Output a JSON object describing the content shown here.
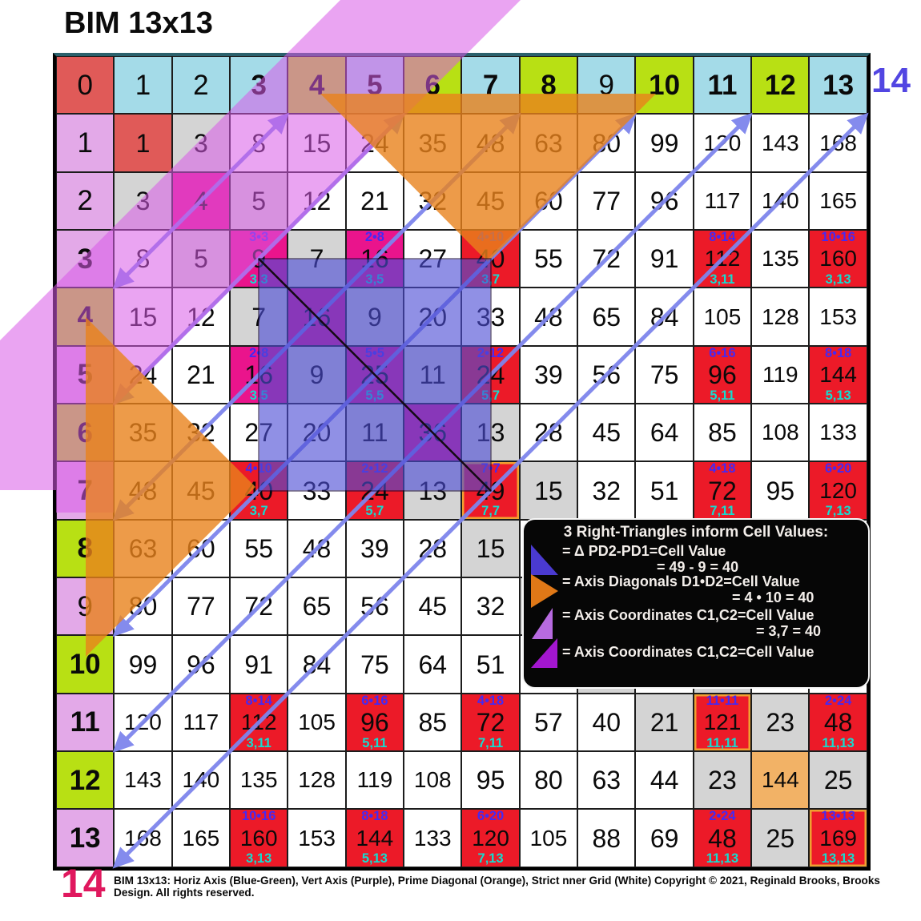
{
  "title": "BIM 13x13",
  "caption": "BIM 13x13:  Horiz Axis (Blue-Green), Vert Axis (Purple), Prime Diagonal (Orange), Strict nner Grid (White)  Copyright © 2021, Reginald Brooks, Brooks Design. All rights reserved.",
  "corner_labels": {
    "top_right": "14",
    "bottom_left": "14"
  },
  "matrix": {
    "col_headers": [
      0,
      1,
      2,
      3,
      4,
      5,
      6,
      7,
      8,
      9,
      10,
      11,
      12,
      13
    ],
    "row_headers": [
      1,
      2,
      3,
      4,
      5,
      6,
      7,
      8,
      9,
      10,
      11,
      12,
      13
    ],
    "rows": [
      [
        1,
        3,
        8,
        15,
        24,
        35,
        48,
        63,
        80,
        99,
        120,
        143,
        168
      ],
      [
        3,
        4,
        5,
        12,
        21,
        32,
        45,
        60,
        77,
        96,
        117,
        140,
        165
      ],
      [
        8,
        5,
        9,
        7,
        16,
        27,
        40,
        55,
        72,
        91,
        112,
        135,
        160
      ],
      [
        15,
        12,
        7,
        16,
        9,
        20,
        33,
        48,
        65,
        84,
        105,
        128,
        153
      ],
      [
        24,
        21,
        16,
        9,
        25,
        11,
        24,
        39,
        56,
        75,
        96,
        119,
        144
      ],
      [
        35,
        32,
        27,
        20,
        11,
        36,
        13,
        28,
        45,
        64,
        85,
        108,
        133
      ],
      [
        48,
        45,
        40,
        33,
        24,
        13,
        49,
        15,
        32,
        51,
        72,
        95,
        120
      ],
      [
        63,
        60,
        55,
        48,
        39,
        28,
        15,
        null,
        null,
        null,
        null,
        null,
        null
      ],
      [
        80,
        77,
        72,
        65,
        56,
        45,
        32,
        null,
        null,
        null,
        null,
        null,
        null
      ],
      [
        99,
        96,
        91,
        84,
        75,
        64,
        51,
        null,
        null,
        null,
        null,
        null,
        null
      ],
      [
        120,
        117,
        112,
        105,
        96,
        85,
        72,
        57,
        40,
        21,
        121,
        23,
        48
      ],
      [
        143,
        140,
        135,
        128,
        119,
        108,
        95,
        80,
        63,
        44,
        23,
        144,
        25
      ],
      [
        168,
        165,
        160,
        153,
        144,
        133,
        120,
        105,
        88,
        69,
        48,
        25,
        169
      ]
    ]
  },
  "style_sets": {
    "prime_axis_numbers": [
      3,
      5,
      7,
      11,
      13
    ],
    "chartreuse_axis_numbers": [
      4,
      6,
      8,
      10,
      12
    ],
    "orange_border_diagonals": [
      7,
      11,
      13
    ],
    "diagonal_bg": {
      "1": "bg-salmon",
      "2": "bg-pink",
      "4": "bg-pink",
      "6": "bg-pink",
      "12": "bg-tan"
    }
  },
  "annotations": [
    {
      "r": 3,
      "c": 3,
      "top": "3•3",
      "bottom": "3,3",
      "bg": "pink"
    },
    {
      "r": 3,
      "c": 5,
      "top": "2•8",
      "bottom": "3,5",
      "bg": "pink"
    },
    {
      "r": 5,
      "c": 3,
      "top": "2•8",
      "bottom": "3,5",
      "bg": "pink"
    },
    {
      "r": 5,
      "c": 5,
      "top": "5•5",
      "bottom": "5,5",
      "bg": "pink"
    },
    {
      "r": 3,
      "c": 7,
      "top": "4•10",
      "bottom": "3,7",
      "bg": "red"
    },
    {
      "r": 7,
      "c": 3,
      "top": "4•10",
      "bottom": "3,7",
      "bg": "red"
    },
    {
      "r": 5,
      "c": 7,
      "top": "2•12",
      "bottom": "5,7",
      "bg": "red"
    },
    {
      "r": 7,
      "c": 5,
      "top": "2•12",
      "bottom": "5,7",
      "bg": "red"
    },
    {
      "r": 7,
      "c": 7,
      "top": "7•7",
      "bottom": "7,7",
      "bg": "red"
    },
    {
      "r": 3,
      "c": 11,
      "top": "8•14",
      "bottom": "3,11",
      "bg": "red"
    },
    {
      "r": 11,
      "c": 3,
      "top": "8•14",
      "bottom": "3,11",
      "bg": "red"
    },
    {
      "r": 5,
      "c": 11,
      "top": "6•16",
      "bottom": "5,11",
      "bg": "red"
    },
    {
      "r": 11,
      "c": 5,
      "top": "6•16",
      "bottom": "5,11",
      "bg": "red"
    },
    {
      "r": 7,
      "c": 11,
      "top": "4•18",
      "bottom": "7,11",
      "bg": "red"
    },
    {
      "r": 11,
      "c": 7,
      "top": "4•18",
      "bottom": "7,11",
      "bg": "red"
    },
    {
      "r": 3,
      "c": 13,
      "top": "10•16",
      "bottom": "3,13",
      "bg": "red"
    },
    {
      "r": 13,
      "c": 3,
      "top": "10•16",
      "bottom": "3,13",
      "bg": "red"
    },
    {
      "r": 5,
      "c": 13,
      "top": "8•18",
      "bottom": "5,13",
      "bg": "red"
    },
    {
      "r": 13,
      "c": 5,
      "top": "8•18",
      "bottom": "5,13",
      "bg": "red"
    },
    {
      "r": 7,
      "c": 13,
      "top": "6•20",
      "bottom": "7,13",
      "bg": "red"
    },
    {
      "r": 13,
      "c": 7,
      "top": "6•20",
      "bottom": "7,13",
      "bg": "red"
    },
    {
      "r": 11,
      "c": 11,
      "top": "11•11",
      "bottom": "11,11",
      "bg": "red"
    },
    {
      "r": 11,
      "c": 13,
      "top": "2•24",
      "bottom": "11,13",
      "bg": "red"
    },
    {
      "r": 13,
      "c": 11,
      "top": "2•24",
      "bottom": "11,13",
      "bg": "red"
    },
    {
      "r": 13,
      "c": 13,
      "top": "13•13",
      "bottom": "13,13",
      "bg": "red"
    }
  ],
  "arrows": {
    "anti_diagonal_sums": [
      4,
      6,
      8,
      10,
      12,
      14
    ]
  },
  "legend": {
    "title": "3 Right-Triangles inform Cell Values:",
    "items": [
      {
        "icon": "blue-right-triangle-icon",
        "label": "= Δ PD2-PD1=Cell Value",
        "sub": "= 49 - 9 = 40"
      },
      {
        "icon": "orange-right-triangle-icon",
        "label": "= Axis Diagonals D1•D2=Cell Value",
        "sub": "= 4 • 10 = 40"
      },
      {
        "icon": "purple-right-triangle-icon",
        "label": "= Axis Coordinates C1,C2=Cell Value",
        "sub": "= 3,7 = 40"
      },
      {
        "icon": "magenta-right-triangle-icon",
        "label": "= Axis Coordinates C1,C2=Cell Value",
        "sub": ""
      }
    ]
  },
  "colors": {
    "horiz_axis": "#a4dbe8",
    "vert_axis": "#e3a9e8",
    "even_axis": "#b8e014",
    "origin": "#e05a58",
    "ppt_red": "#ec1a28",
    "ppt_pink": "#ea148c",
    "near_diagonal_gray": "#d4d4d4",
    "diag_144": "#f2b266",
    "violet_overlay": "#d95ae8",
    "orange_overlay": "#e8821c",
    "blue_square": "#4d4dd6",
    "arrow": "#7e85ed",
    "ann_top": "#4629f2",
    "ann_bottom": "#14dcd0",
    "corner_tr": "#5246e2",
    "corner_bl": "#e0185e"
  }
}
